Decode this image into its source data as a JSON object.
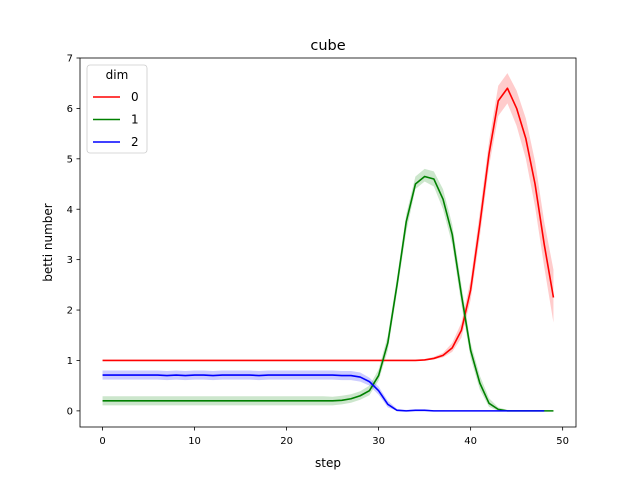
{
  "chart_data": {
    "type": "line",
    "title": "cube",
    "xlabel": "step",
    "ylabel": "betti number",
    "xlim": [
      -2.45,
      51.45
    ],
    "ylim": [
      -0.32,
      7.0
    ],
    "xticks": [
      0,
      10,
      20,
      30,
      40,
      50
    ],
    "yticks": [
      0,
      1,
      2,
      3,
      4,
      5,
      6,
      7
    ],
    "grid": false,
    "legend": {
      "title": "dim",
      "placement": "top-left"
    },
    "series": [
      {
        "name": "0",
        "color": "#ff0000",
        "x": [
          0,
          1,
          2,
          3,
          4,
          5,
          6,
          7,
          8,
          9,
          10,
          11,
          12,
          13,
          14,
          15,
          16,
          17,
          18,
          19,
          20,
          21,
          22,
          23,
          24,
          25,
          26,
          27,
          28,
          29,
          30,
          31,
          32,
          33,
          34,
          35,
          36,
          37,
          38,
          39,
          40,
          41,
          42,
          43,
          44,
          45,
          46,
          47,
          48,
          49
        ],
        "values": [
          1,
          1,
          1,
          1,
          1,
          1,
          1,
          1,
          1,
          1,
          1,
          1,
          1,
          1,
          1,
          1,
          1,
          1,
          1,
          1,
          1,
          1,
          1,
          1,
          1,
          1,
          1,
          1,
          1,
          1,
          1,
          1,
          1,
          1,
          1,
          1.01,
          1.04,
          1.1,
          1.25,
          1.6,
          2.4,
          3.7,
          5.1,
          6.15,
          6.4,
          6.0,
          5.4,
          4.5,
          3.3,
          2.25
        ],
        "lower": [
          1,
          1,
          1,
          1,
          1,
          1,
          1,
          1,
          1,
          1,
          1,
          1,
          1,
          1,
          1,
          1,
          1,
          1,
          1,
          1,
          1,
          1,
          1,
          1,
          1,
          1,
          1,
          1,
          1,
          1,
          1,
          1,
          1,
          1,
          1,
          1.0,
          1.02,
          1.06,
          1.17,
          1.45,
          2.2,
          3.45,
          4.85,
          5.85,
          6.1,
          5.65,
          5.0,
          4.05,
          2.85,
          1.75
        ],
        "upper": [
          1,
          1,
          1,
          1,
          1,
          1,
          1,
          1,
          1,
          1,
          1,
          1,
          1,
          1,
          1,
          1,
          1,
          1,
          1,
          1,
          1,
          1,
          1,
          1,
          1,
          1,
          1,
          1,
          1,
          1,
          1,
          1,
          1,
          1,
          1,
          1.03,
          1.07,
          1.15,
          1.35,
          1.75,
          2.6,
          3.95,
          5.35,
          6.45,
          6.7,
          6.35,
          5.8,
          4.95,
          3.75,
          2.8
        ]
      },
      {
        "name": "1",
        "color": "#008000",
        "x": [
          0,
          1,
          2,
          3,
          4,
          5,
          6,
          7,
          8,
          9,
          10,
          11,
          12,
          13,
          14,
          15,
          16,
          17,
          18,
          19,
          20,
          21,
          22,
          23,
          24,
          25,
          26,
          27,
          28,
          29,
          30,
          31,
          32,
          33,
          34,
          35,
          36,
          37,
          38,
          39,
          40,
          41,
          42,
          43,
          44,
          45,
          46,
          47,
          48,
          49
        ],
        "values": [
          0.2,
          0.2,
          0.2,
          0.2,
          0.2,
          0.2,
          0.2,
          0.2,
          0.2,
          0.2,
          0.2,
          0.2,
          0.2,
          0.2,
          0.2,
          0.2,
          0.2,
          0.2,
          0.2,
          0.2,
          0.2,
          0.2,
          0.2,
          0.2,
          0.2,
          0.2,
          0.21,
          0.24,
          0.3,
          0.4,
          0.7,
          1.35,
          2.5,
          3.75,
          4.5,
          4.65,
          4.6,
          4.2,
          3.5,
          2.3,
          1.2,
          0.55,
          0.15,
          0.03,
          0,
          0,
          0,
          0,
          0,
          0
        ],
        "lower": [
          0.11,
          0.11,
          0.11,
          0.11,
          0.11,
          0.11,
          0.11,
          0.11,
          0.11,
          0.11,
          0.11,
          0.11,
          0.11,
          0.11,
          0.11,
          0.11,
          0.11,
          0.11,
          0.11,
          0.11,
          0.11,
          0.11,
          0.11,
          0.11,
          0.11,
          0.11,
          0.13,
          0.16,
          0.22,
          0.31,
          0.6,
          1.2,
          2.35,
          3.55,
          4.4,
          4.55,
          4.45,
          4.0,
          3.3,
          2.1,
          1.05,
          0.42,
          0.08,
          0,
          0,
          0,
          0,
          0,
          0,
          0
        ],
        "upper": [
          0.29,
          0.29,
          0.29,
          0.29,
          0.29,
          0.29,
          0.29,
          0.29,
          0.29,
          0.29,
          0.29,
          0.29,
          0.29,
          0.29,
          0.29,
          0.29,
          0.29,
          0.29,
          0.29,
          0.29,
          0.29,
          0.29,
          0.29,
          0.29,
          0.29,
          0.28,
          0.3,
          0.33,
          0.39,
          0.5,
          0.82,
          1.5,
          2.65,
          3.9,
          4.65,
          4.8,
          4.75,
          4.4,
          3.7,
          2.5,
          1.35,
          0.7,
          0.25,
          0.07,
          0.02,
          0,
          0,
          0,
          0,
          0
        ]
      },
      {
        "name": "2",
        "color": "#0000ff",
        "x": [
          0,
          1,
          2,
          3,
          4,
          5,
          6,
          7,
          8,
          9,
          10,
          11,
          12,
          13,
          14,
          15,
          16,
          17,
          18,
          19,
          20,
          21,
          22,
          23,
          24,
          25,
          26,
          27,
          28,
          29,
          30,
          31,
          32,
          33,
          34,
          35,
          36,
          37,
          38,
          39,
          40,
          41,
          42,
          43,
          44,
          45,
          46,
          47,
          48
        ],
        "values": [
          0.71,
          0.71,
          0.71,
          0.71,
          0.71,
          0.71,
          0.71,
          0.7,
          0.71,
          0.7,
          0.71,
          0.71,
          0.7,
          0.71,
          0.71,
          0.71,
          0.71,
          0.7,
          0.71,
          0.71,
          0.71,
          0.71,
          0.71,
          0.71,
          0.71,
          0.71,
          0.7,
          0.7,
          0.67,
          0.58,
          0.4,
          0.13,
          0.01,
          0,
          0.01,
          0.01,
          0,
          0,
          0,
          0,
          0,
          0,
          0,
          0,
          0,
          0,
          0,
          0,
          0
        ],
        "lower": [
          0.62,
          0.62,
          0.62,
          0.62,
          0.62,
          0.62,
          0.62,
          0.61,
          0.62,
          0.61,
          0.62,
          0.62,
          0.61,
          0.62,
          0.62,
          0.62,
          0.62,
          0.61,
          0.62,
          0.62,
          0.62,
          0.62,
          0.62,
          0.62,
          0.62,
          0.62,
          0.61,
          0.61,
          0.58,
          0.5,
          0.32,
          0.07,
          0,
          0,
          0,
          0,
          0,
          0,
          0,
          0,
          0,
          0,
          0,
          0,
          0,
          0,
          0,
          0,
          0
        ],
        "upper": [
          0.8,
          0.8,
          0.8,
          0.8,
          0.8,
          0.8,
          0.8,
          0.79,
          0.8,
          0.79,
          0.8,
          0.8,
          0.79,
          0.8,
          0.8,
          0.8,
          0.8,
          0.79,
          0.8,
          0.8,
          0.8,
          0.8,
          0.8,
          0.8,
          0.8,
          0.8,
          0.79,
          0.79,
          0.76,
          0.66,
          0.48,
          0.2,
          0.04,
          0.02,
          0.03,
          0.03,
          0.01,
          0.01,
          0,
          0,
          0,
          0,
          0,
          0,
          0,
          0,
          0,
          0,
          0
        ]
      }
    ]
  }
}
